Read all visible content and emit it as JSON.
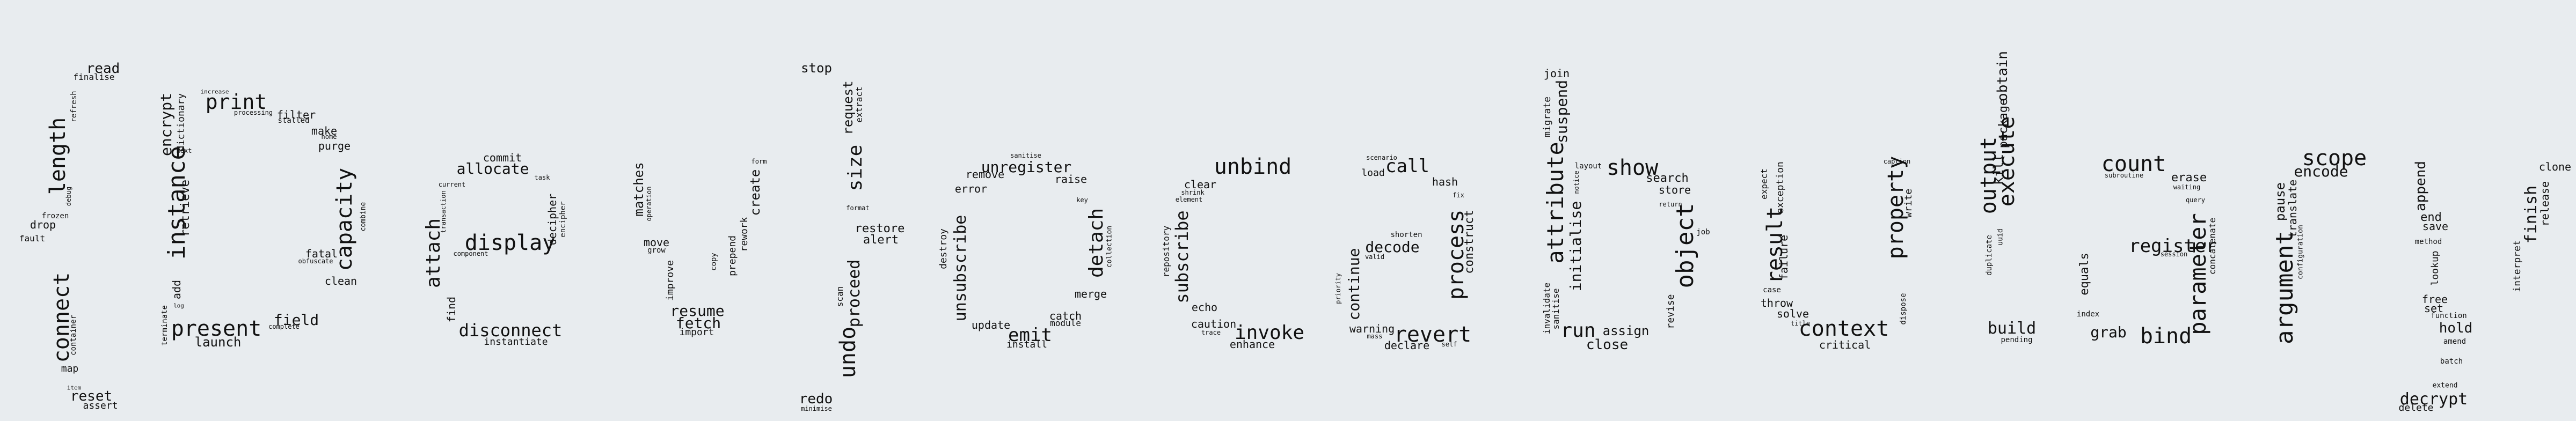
{
  "colors": {
    "background": "#e8ecef",
    "text": "#111111"
  },
  "words": [
    "read",
    "finalise",
    "refresh",
    "length",
    "debug",
    "frozen",
    "drop",
    "fault",
    "connect",
    "container",
    "map",
    "item",
    "reset",
    "assert",
    "increase",
    "print",
    "processing",
    "filter",
    "stalled",
    "encrypt",
    "dictionary",
    "make",
    "home",
    "purge",
    "instance",
    "retrieve",
    "next",
    "capacity",
    "combine",
    "clean",
    "fatal",
    "obfuscate",
    "field",
    "complete",
    "present",
    "launch",
    "add",
    "log",
    "terminate",
    "commit",
    "allocate",
    "current",
    "task",
    "transaction",
    "attach",
    "display",
    "decipher",
    "encipher",
    "component",
    "find",
    "disconnect",
    "instantiate",
    "matches",
    "operation",
    "move",
    "grow",
    "improve",
    "resume",
    "fetch",
    "import",
    "copy",
    "prepend",
    "form",
    "create",
    "rework",
    "stop",
    "request",
    "size",
    "extract",
    "format",
    "restore",
    "alert",
    "scan",
    "proceed",
    "undo",
    "redo",
    "minimise",
    "sanitise",
    "unregister",
    "remove",
    "raise",
    "error",
    "key",
    "detach",
    "collection",
    "destroy",
    "unsubscribe",
    "merge",
    "catch",
    "update",
    "module",
    "emit",
    "install",
    "unbind",
    "clear",
    "shrink",
    "element",
    "repository",
    "subscribe",
    "echo",
    "caution",
    "trace",
    "invoke",
    "enhance",
    "scenario",
    "load",
    "call",
    "hash",
    "fix",
    "shorten",
    "decode",
    "valid",
    "process",
    "construct",
    "continue",
    "priority",
    "warning",
    "mass",
    "revert",
    "declare",
    "self",
    "join",
    "migrate",
    "suspend",
    "layout",
    "show",
    "notice",
    "search",
    "store",
    "return",
    "attribute",
    "initialise",
    "job",
    "object",
    "invalidate",
    "sanitise",
    "run",
    "assign",
    "close",
    "revise",
    "caption",
    "expect",
    "exception",
    "result",
    "failure",
    "case",
    "throw",
    "solve",
    "title",
    "property",
    "write",
    "context",
    "critical",
    "dispose",
    "output",
    "execute",
    "obtain",
    "kill",
    "package",
    "uuid",
    "duplicate",
    "build",
    "pending",
    "count",
    "subroutine",
    "erase",
    "waiting",
    "query",
    "register",
    "session",
    "equals",
    "index",
    "grab",
    "bind",
    "parameter",
    "concatenate",
    "scope",
    "encode",
    "pause",
    "translate",
    "argument",
    "configuration",
    "append",
    "end",
    "save",
    "method",
    "lookup",
    "free",
    "set",
    "function",
    "hold",
    "amend",
    "batch",
    "extend",
    "decrypt",
    "delete",
    "clone",
    "finish",
    "release",
    "interpret"
  ]
}
